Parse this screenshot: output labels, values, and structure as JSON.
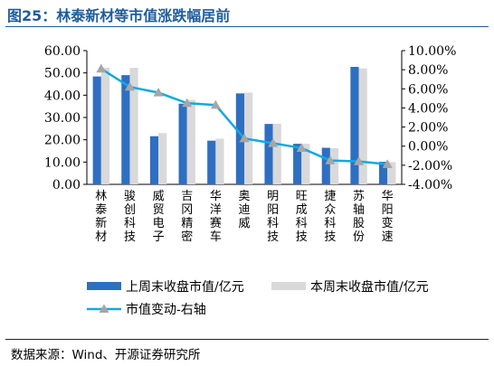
{
  "figure_label": "图25：林泰新材等市值涨跌幅居前",
  "source": "数据来源：Wind、开源证券研究所",
  "colors": {
    "title": "#1F5C99",
    "series_prev": "#2E6FC1",
    "series_curr": "#D9D9D9",
    "series_change": "#12A9E2",
    "marker": "#A6A6A6"
  },
  "chart_data": {
    "type": "bar",
    "categories": [
      "林泰新材",
      "骏创科技",
      "威贸电子",
      "吉冈精密",
      "华洋赛车",
      "奥迪威",
      "明阳科技",
      "旺成科技",
      "捷众科技",
      "苏轴股份",
      "华阳变速"
    ],
    "series": [
      {
        "name": "上周末收盘市值/亿元",
        "type": "bar",
        "axis": "left",
        "values": [
          48.4,
          49.0,
          21.6,
          36.2,
          19.6,
          40.8,
          27.1,
          18.2,
          16.4,
          52.7,
          10.1
        ]
      },
      {
        "name": "本周末收盘市值/亿元",
        "type": "bar",
        "axis": "left",
        "values": [
          52.3,
          52.3,
          23.0,
          37.9,
          20.5,
          41.2,
          27.2,
          18.2,
          16.2,
          52.0,
          10.0
        ]
      },
      {
        "name": "市值变动-右轴",
        "type": "line",
        "axis": "right",
        "values": [
          8.1,
          6.2,
          5.6,
          4.5,
          4.3,
          0.8,
          0.3,
          -0.2,
          -1.5,
          -1.6,
          -1.9
        ]
      }
    ],
    "y_left": {
      "min": 0,
      "max": 60,
      "step": 10,
      "tick_labels": [
        "0.00",
        "10.00",
        "20.00",
        "30.00",
        "40.00",
        "50.00",
        "60.00"
      ]
    },
    "y_right": {
      "min": -4,
      "max": 10,
      "step": 2,
      "tick_labels": [
        "-4.00%",
        "-2.00%",
        "0.00%",
        "2.00%",
        "4.00%",
        "6.00%",
        "8.00%",
        "10.00%"
      ]
    },
    "grid": false,
    "legend_position": "bottom"
  }
}
